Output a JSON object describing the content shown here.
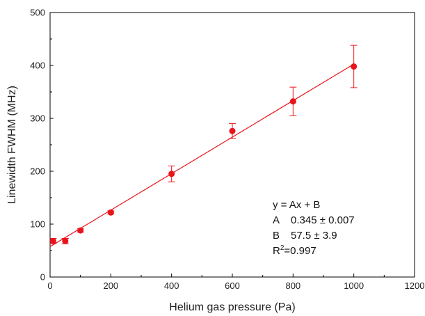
{
  "chart_data": {
    "type": "scatter",
    "title": "",
    "xlabel": "Helium gas pressure (Pa)",
    "ylabel": "Linewidth FWHM (MHz)",
    "xlim": [
      0,
      1200
    ],
    "ylim": [
      0,
      500
    ],
    "x_ticks": [
      0,
      200,
      400,
      600,
      800,
      1000,
      1200
    ],
    "y_ticks": [
      0,
      100,
      200,
      300,
      400,
      500
    ],
    "grid": false,
    "color": "#e8141b",
    "series": [
      {
        "x": [
          10,
          50,
          100,
          200,
          400,
          600,
          800,
          1000
        ],
        "y": [
          68,
          68,
          88,
          122,
          195,
          276,
          332,
          398
        ],
        "y_err": [
          5,
          5,
          3,
          3,
          15,
          14,
          27,
          40
        ]
      }
    ],
    "fit": {
      "slope": 0.345,
      "intercept": 57.5,
      "x_range": [
        0,
        1000
      ]
    },
    "annotation": {
      "equation": "y = Ax + B",
      "a_label": "A",
      "a_value": "0.345 ± 0.007",
      "b_label": "B",
      "b_value": "57.5 ± 3.9",
      "r2_prefix": "R",
      "r2_sup": "2",
      "r2_value": "=0.997"
    }
  }
}
